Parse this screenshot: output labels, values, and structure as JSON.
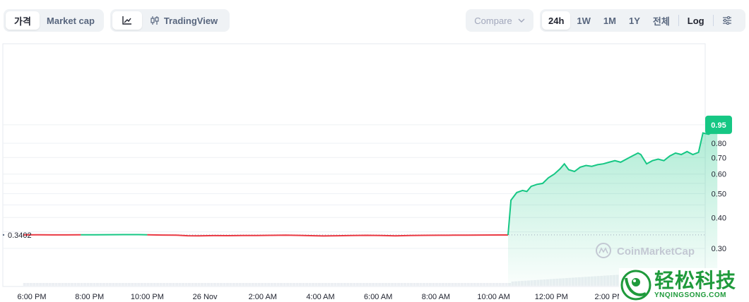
{
  "toolbar": {
    "metric_tabs": [
      {
        "label": "가격",
        "active": true
      },
      {
        "label": "Market cap",
        "active": false
      }
    ],
    "chart_type": {
      "line_icon": "line-chart-icon",
      "tradingview_icon": "candlestick-icon",
      "tradingview_label": "TradingView"
    },
    "compare": {
      "label": "Compare",
      "icon": "chevron-down-icon"
    },
    "ranges": [
      {
        "label": "24h",
        "active": true
      },
      {
        "label": "1W",
        "active": false
      },
      {
        "label": "1M",
        "active": false
      },
      {
        "label": "1Y",
        "active": false
      },
      {
        "label": "전체",
        "active": false
      }
    ],
    "log_label": "Log",
    "settings_icon": "sliders-icon"
  },
  "chart_data": {
    "type": "line",
    "scale": "log",
    "y_ticks": [
      "0.30",
      "0.40",
      "0.50",
      "0.60",
      "0.70",
      "0.80"
    ],
    "y_tick_values": [
      0.3,
      0.4,
      0.5,
      0.6,
      0.7,
      0.8
    ],
    "x_ticks": [
      "6:00 PM",
      "8:00 PM",
      "10:00 PM",
      "26 Nov",
      "2:00 AM",
      "4:00 AM",
      "6:00 AM",
      "8:00 AM",
      "10:00 AM",
      "12:00 PM",
      "2:00 PM"
    ],
    "x_tick_hours": [
      18,
      20,
      22,
      24,
      26,
      28,
      30,
      32,
      34,
      36,
      38
    ],
    "baseline": {
      "value": 0.3402,
      "label": "0.3402"
    },
    "current": {
      "value": 0.95,
      "label": "0.95"
    },
    "colors": {
      "up": "#16c784",
      "down": "#ea3943",
      "baseline_dots": "#a1a7bb",
      "area_top": "#16c784"
    },
    "series": [
      {
        "points": [
          [
            17.7,
            0.3402
          ],
          [
            18.2,
            0.3405
          ],
          [
            18.7,
            0.3401
          ],
          [
            19.2,
            0.3403
          ],
          [
            19.7,
            0.3406
          ],
          [
            20.2,
            0.3404
          ],
          [
            20.7,
            0.3409
          ],
          [
            21.2,
            0.3412
          ],
          [
            21.7,
            0.3411
          ],
          [
            22.0,
            0.3405
          ],
          [
            22.5,
            0.3398
          ],
          [
            23.0,
            0.3395
          ],
          [
            23.4,
            0.3375
          ],
          [
            23.8,
            0.3372
          ],
          [
            24.3,
            0.338
          ],
          [
            24.8,
            0.3378
          ],
          [
            25.3,
            0.3382
          ],
          [
            25.8,
            0.3384
          ],
          [
            26.3,
            0.3388
          ],
          [
            26.8,
            0.3392
          ],
          [
            27.3,
            0.3386
          ],
          [
            27.8,
            0.3375
          ],
          [
            28.1,
            0.3368
          ],
          [
            28.6,
            0.3376
          ],
          [
            29.1,
            0.3384
          ],
          [
            29.6,
            0.3388
          ],
          [
            30.1,
            0.3381
          ],
          [
            30.6,
            0.3373
          ],
          [
            31.1,
            0.3382
          ],
          [
            31.6,
            0.3388
          ],
          [
            32.1,
            0.3391
          ],
          [
            32.6,
            0.3393
          ],
          [
            33.1,
            0.3395
          ],
          [
            33.6,
            0.3397
          ],
          [
            34.2,
            0.3399
          ],
          [
            34.5,
            0.34
          ],
          [
            34.6,
            0.47
          ],
          [
            34.8,
            0.505
          ],
          [
            35.0,
            0.515
          ],
          [
            35.15,
            0.51
          ],
          [
            35.3,
            0.535
          ],
          [
            35.5,
            0.545
          ],
          [
            35.7,
            0.55
          ],
          [
            35.9,
            0.58
          ],
          [
            36.1,
            0.6
          ],
          [
            36.3,
            0.63
          ],
          [
            36.45,
            0.66
          ],
          [
            36.6,
            0.625
          ],
          [
            36.8,
            0.615
          ],
          [
            37.0,
            0.64
          ],
          [
            37.2,
            0.65
          ],
          [
            37.4,
            0.645
          ],
          [
            37.6,
            0.655
          ],
          [
            37.8,
            0.66
          ],
          [
            38.0,
            0.67
          ],
          [
            38.2,
            0.68
          ],
          [
            38.4,
            0.67
          ],
          [
            38.6,
            0.69
          ],
          [
            38.8,
            0.71
          ],
          [
            39.0,
            0.73
          ],
          [
            39.1,
            0.72
          ],
          [
            39.3,
            0.66
          ],
          [
            39.5,
            0.68
          ],
          [
            39.7,
            0.69
          ],
          [
            39.9,
            0.68
          ],
          [
            40.1,
            0.71
          ],
          [
            40.3,
            0.73
          ],
          [
            40.5,
            0.72
          ],
          [
            40.7,
            0.74
          ],
          [
            40.9,
            0.72
          ],
          [
            41.1,
            0.735
          ],
          [
            41.25,
            0.88
          ],
          [
            41.45,
            0.87
          ],
          [
            41.65,
            0.9
          ],
          [
            41.75,
            0.95
          ]
        ]
      }
    ]
  },
  "watermark": {
    "text": "CoinMarketCap",
    "icon": "coinmarketcap-logo-icon"
  },
  "brand_overlay": {
    "cn": "轻松科技",
    "en": "YNQINGSONG.COM",
    "icon": "brand-logo-icon"
  }
}
